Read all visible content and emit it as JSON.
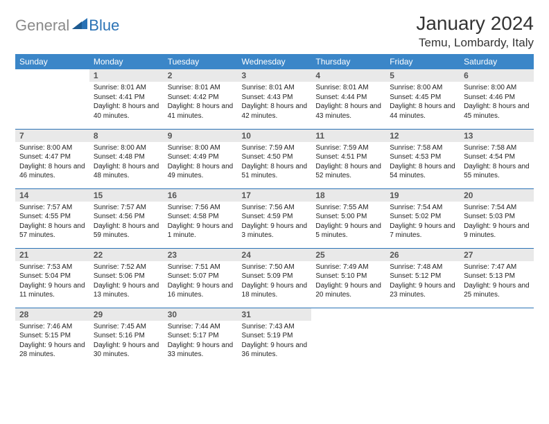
{
  "logo": {
    "gray": "General",
    "blue": "Blue"
  },
  "title": "January 2024",
  "location": "Temu, Lombardy, Italy",
  "header_bg": "#3b86c8",
  "header_fg": "#ffffff",
  "row_border": "#2a72b5",
  "daynum_bg": "#e9e9e9",
  "text_color": "#222222",
  "weekdays": [
    "Sunday",
    "Monday",
    "Tuesday",
    "Wednesday",
    "Thursday",
    "Friday",
    "Saturday"
  ],
  "weeks": [
    [
      null,
      {
        "n": "1",
        "sr": "8:01 AM",
        "ss": "4:41 PM",
        "dl": "8 hours and 40 minutes."
      },
      {
        "n": "2",
        "sr": "8:01 AM",
        "ss": "4:42 PM",
        "dl": "8 hours and 41 minutes."
      },
      {
        "n": "3",
        "sr": "8:01 AM",
        "ss": "4:43 PM",
        "dl": "8 hours and 42 minutes."
      },
      {
        "n": "4",
        "sr": "8:01 AM",
        "ss": "4:44 PM",
        "dl": "8 hours and 43 minutes."
      },
      {
        "n": "5",
        "sr": "8:00 AM",
        "ss": "4:45 PM",
        "dl": "8 hours and 44 minutes."
      },
      {
        "n": "6",
        "sr": "8:00 AM",
        "ss": "4:46 PM",
        "dl": "8 hours and 45 minutes."
      }
    ],
    [
      {
        "n": "7",
        "sr": "8:00 AM",
        "ss": "4:47 PM",
        "dl": "8 hours and 46 minutes."
      },
      {
        "n": "8",
        "sr": "8:00 AM",
        "ss": "4:48 PM",
        "dl": "8 hours and 48 minutes."
      },
      {
        "n": "9",
        "sr": "8:00 AM",
        "ss": "4:49 PM",
        "dl": "8 hours and 49 minutes."
      },
      {
        "n": "10",
        "sr": "7:59 AM",
        "ss": "4:50 PM",
        "dl": "8 hours and 51 minutes."
      },
      {
        "n": "11",
        "sr": "7:59 AM",
        "ss": "4:51 PM",
        "dl": "8 hours and 52 minutes."
      },
      {
        "n": "12",
        "sr": "7:58 AM",
        "ss": "4:53 PM",
        "dl": "8 hours and 54 minutes."
      },
      {
        "n": "13",
        "sr": "7:58 AM",
        "ss": "4:54 PM",
        "dl": "8 hours and 55 minutes."
      }
    ],
    [
      {
        "n": "14",
        "sr": "7:57 AM",
        "ss": "4:55 PM",
        "dl": "8 hours and 57 minutes."
      },
      {
        "n": "15",
        "sr": "7:57 AM",
        "ss": "4:56 PM",
        "dl": "8 hours and 59 minutes."
      },
      {
        "n": "16",
        "sr": "7:56 AM",
        "ss": "4:58 PM",
        "dl": "9 hours and 1 minute."
      },
      {
        "n": "17",
        "sr": "7:56 AM",
        "ss": "4:59 PM",
        "dl": "9 hours and 3 minutes."
      },
      {
        "n": "18",
        "sr": "7:55 AM",
        "ss": "5:00 PM",
        "dl": "9 hours and 5 minutes."
      },
      {
        "n": "19",
        "sr": "7:54 AM",
        "ss": "5:02 PM",
        "dl": "9 hours and 7 minutes."
      },
      {
        "n": "20",
        "sr": "7:54 AM",
        "ss": "5:03 PM",
        "dl": "9 hours and 9 minutes."
      }
    ],
    [
      {
        "n": "21",
        "sr": "7:53 AM",
        "ss": "5:04 PM",
        "dl": "9 hours and 11 minutes."
      },
      {
        "n": "22",
        "sr": "7:52 AM",
        "ss": "5:06 PM",
        "dl": "9 hours and 13 minutes."
      },
      {
        "n": "23",
        "sr": "7:51 AM",
        "ss": "5:07 PM",
        "dl": "9 hours and 16 minutes."
      },
      {
        "n": "24",
        "sr": "7:50 AM",
        "ss": "5:09 PM",
        "dl": "9 hours and 18 minutes."
      },
      {
        "n": "25",
        "sr": "7:49 AM",
        "ss": "5:10 PM",
        "dl": "9 hours and 20 minutes."
      },
      {
        "n": "26",
        "sr": "7:48 AM",
        "ss": "5:12 PM",
        "dl": "9 hours and 23 minutes."
      },
      {
        "n": "27",
        "sr": "7:47 AM",
        "ss": "5:13 PM",
        "dl": "9 hours and 25 minutes."
      }
    ],
    [
      {
        "n": "28",
        "sr": "7:46 AM",
        "ss": "5:15 PM",
        "dl": "9 hours and 28 minutes."
      },
      {
        "n": "29",
        "sr": "7:45 AM",
        "ss": "5:16 PM",
        "dl": "9 hours and 30 minutes."
      },
      {
        "n": "30",
        "sr": "7:44 AM",
        "ss": "5:17 PM",
        "dl": "9 hours and 33 minutes."
      },
      {
        "n": "31",
        "sr": "7:43 AM",
        "ss": "5:19 PM",
        "dl": "9 hours and 36 minutes."
      },
      null,
      null,
      null
    ]
  ],
  "labels": {
    "sunrise": "Sunrise:",
    "sunset": "Sunset:",
    "daylight": "Daylight:"
  }
}
